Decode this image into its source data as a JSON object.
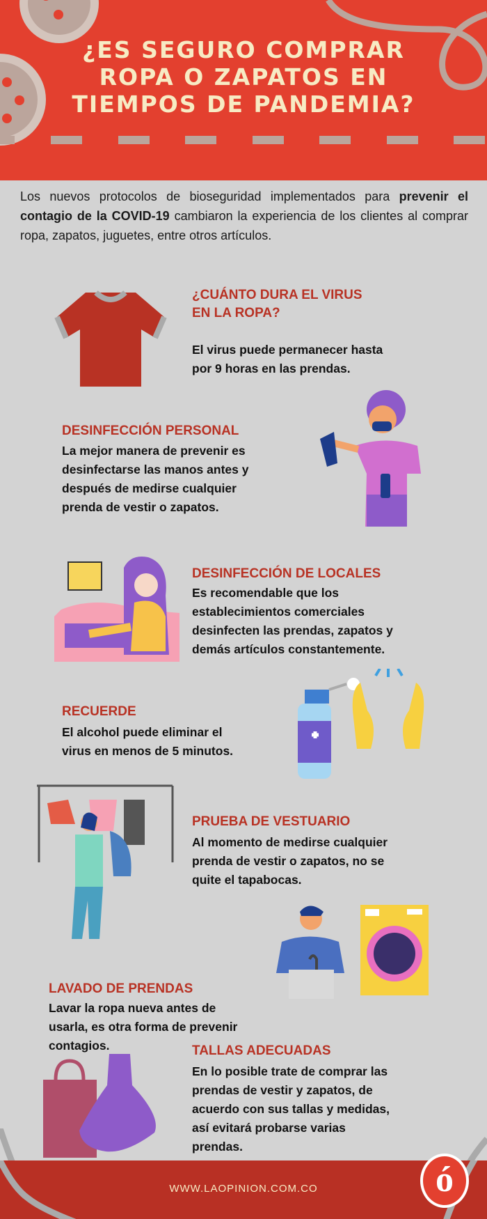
{
  "header": {
    "title_lines": [
      "¿ES SEGURO COMPRAR",
      "ROPA O ZAPATOS EN",
      "TIEMPOS DE PANDEMIA?"
    ]
  },
  "intro": {
    "before": "Los nuevos protocolos de bioseguridad implementados para ",
    "bold": "prevenir el contagio de la COVID-19",
    "after": " cambiaron la experiencia de los clientes al comprar ropa, zapatos, juguetes, entre otros artículos."
  },
  "sections": [
    {
      "title_lines": [
        "¿CUÁNTO DURA EL VIRUS",
        "EN LA ROPA?"
      ],
      "body_lines": [
        "El virus puede permanecer hasta",
        "por 9 horas en las prendas."
      ]
    },
    {
      "title_lines": [
        "DESINFECCIÓN PERSONAL"
      ],
      "body_lines": [
        "La mejor manera de prevenir es",
        "desinfectarse las manos antes y",
        "después de medirse cualquier",
        "prenda de vestir o zapatos."
      ]
    },
    {
      "title_lines": [
        "DESINFECCIÓN DE LOCALES"
      ],
      "body_lines": [
        "Es recomendable que los",
        "establecimientos comerciales",
        "desinfecten las prendas, zapatos y",
        "demás artículos constantemente."
      ]
    },
    {
      "title_lines": [
        "RECUERDE"
      ],
      "body_lines": [
        "El alcohol puede eliminar el",
        "virus en menos de 5 minutos."
      ]
    },
    {
      "title_lines": [
        "PRUEBA DE VESTUARIO"
      ],
      "body_lines": [
        "Al momento de medirse cualquier",
        "prenda de vestir o zapatos, no se",
        "quite el tapabocas."
      ]
    },
    {
      "title_lines": [
        "LAVADO DE PRENDAS"
      ],
      "body_lines": [
        "Lavar la ropa nueva antes de",
        "usarla, es otra forma de prevenir",
        "contagios."
      ]
    },
    {
      "title_lines": [
        "TALLAS ADECUADAS"
      ],
      "body_lines": [
        "En lo posible trate de comprar las",
        "prendas de vestir y zapatos, de",
        "acuerdo con sus tallas y medidas,",
        "así evitará probarse varias",
        "prendas."
      ]
    }
  ],
  "footer": {
    "url": "WWW.LAOPINION.COM.CO",
    "logo": "ó"
  },
  "colors": {
    "header_red": "#e3402f",
    "footer_red": "#b83024",
    "heading_red": "#b83224",
    "title_cream": "#f7ebc4",
    "background": "#d3d3d3"
  }
}
